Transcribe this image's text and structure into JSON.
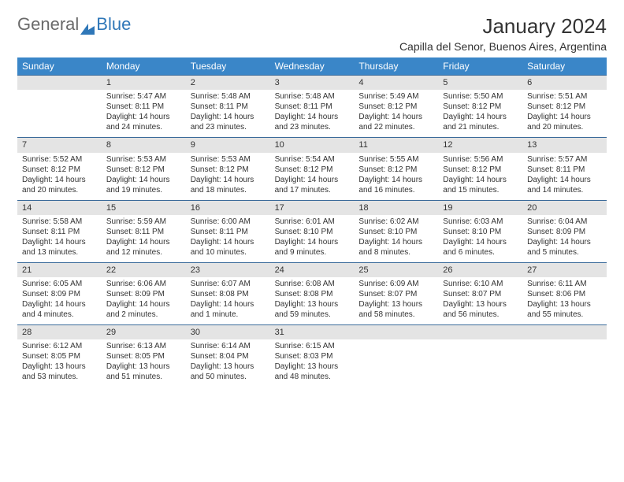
{
  "logo": {
    "part1": "General",
    "part2": "Blue"
  },
  "title": "January 2024",
  "subtitle": "Capilla del Senor, Buenos Aires, Argentina",
  "colors": {
    "header_bg": "#3a86c8",
    "header_text": "#ffffff",
    "daynum_bg": "#e4e4e4",
    "border": "#3a6a9a",
    "logo_grey": "#6a6a6a",
    "logo_blue": "#2f77b8",
    "text": "#333333"
  },
  "weekdays": [
    "Sunday",
    "Monday",
    "Tuesday",
    "Wednesday",
    "Thursday",
    "Friday",
    "Saturday"
  ],
  "weeks": [
    [
      {
        "n": "",
        "sr": "",
        "ss": "",
        "dl": "",
        "empty": true
      },
      {
        "n": "1",
        "sr": "Sunrise: 5:47 AM",
        "ss": "Sunset: 8:11 PM",
        "dl": "Daylight: 14 hours and 24 minutes."
      },
      {
        "n": "2",
        "sr": "Sunrise: 5:48 AM",
        "ss": "Sunset: 8:11 PM",
        "dl": "Daylight: 14 hours and 23 minutes."
      },
      {
        "n": "3",
        "sr": "Sunrise: 5:48 AM",
        "ss": "Sunset: 8:11 PM",
        "dl": "Daylight: 14 hours and 23 minutes."
      },
      {
        "n": "4",
        "sr": "Sunrise: 5:49 AM",
        "ss": "Sunset: 8:12 PM",
        "dl": "Daylight: 14 hours and 22 minutes."
      },
      {
        "n": "5",
        "sr": "Sunrise: 5:50 AM",
        "ss": "Sunset: 8:12 PM",
        "dl": "Daylight: 14 hours and 21 minutes."
      },
      {
        "n": "6",
        "sr": "Sunrise: 5:51 AM",
        "ss": "Sunset: 8:12 PM",
        "dl": "Daylight: 14 hours and 20 minutes."
      }
    ],
    [
      {
        "n": "7",
        "sr": "Sunrise: 5:52 AM",
        "ss": "Sunset: 8:12 PM",
        "dl": "Daylight: 14 hours and 20 minutes."
      },
      {
        "n": "8",
        "sr": "Sunrise: 5:53 AM",
        "ss": "Sunset: 8:12 PM",
        "dl": "Daylight: 14 hours and 19 minutes."
      },
      {
        "n": "9",
        "sr": "Sunrise: 5:53 AM",
        "ss": "Sunset: 8:12 PM",
        "dl": "Daylight: 14 hours and 18 minutes."
      },
      {
        "n": "10",
        "sr": "Sunrise: 5:54 AM",
        "ss": "Sunset: 8:12 PM",
        "dl": "Daylight: 14 hours and 17 minutes."
      },
      {
        "n": "11",
        "sr": "Sunrise: 5:55 AM",
        "ss": "Sunset: 8:12 PM",
        "dl": "Daylight: 14 hours and 16 minutes."
      },
      {
        "n": "12",
        "sr": "Sunrise: 5:56 AM",
        "ss": "Sunset: 8:12 PM",
        "dl": "Daylight: 14 hours and 15 minutes."
      },
      {
        "n": "13",
        "sr": "Sunrise: 5:57 AM",
        "ss": "Sunset: 8:11 PM",
        "dl": "Daylight: 14 hours and 14 minutes."
      }
    ],
    [
      {
        "n": "14",
        "sr": "Sunrise: 5:58 AM",
        "ss": "Sunset: 8:11 PM",
        "dl": "Daylight: 14 hours and 13 minutes."
      },
      {
        "n": "15",
        "sr": "Sunrise: 5:59 AM",
        "ss": "Sunset: 8:11 PM",
        "dl": "Daylight: 14 hours and 12 minutes."
      },
      {
        "n": "16",
        "sr": "Sunrise: 6:00 AM",
        "ss": "Sunset: 8:11 PM",
        "dl": "Daylight: 14 hours and 10 minutes."
      },
      {
        "n": "17",
        "sr": "Sunrise: 6:01 AM",
        "ss": "Sunset: 8:10 PM",
        "dl": "Daylight: 14 hours and 9 minutes."
      },
      {
        "n": "18",
        "sr": "Sunrise: 6:02 AM",
        "ss": "Sunset: 8:10 PM",
        "dl": "Daylight: 14 hours and 8 minutes."
      },
      {
        "n": "19",
        "sr": "Sunrise: 6:03 AM",
        "ss": "Sunset: 8:10 PM",
        "dl": "Daylight: 14 hours and 6 minutes."
      },
      {
        "n": "20",
        "sr": "Sunrise: 6:04 AM",
        "ss": "Sunset: 8:09 PM",
        "dl": "Daylight: 14 hours and 5 minutes."
      }
    ],
    [
      {
        "n": "21",
        "sr": "Sunrise: 6:05 AM",
        "ss": "Sunset: 8:09 PM",
        "dl": "Daylight: 14 hours and 4 minutes."
      },
      {
        "n": "22",
        "sr": "Sunrise: 6:06 AM",
        "ss": "Sunset: 8:09 PM",
        "dl": "Daylight: 14 hours and 2 minutes."
      },
      {
        "n": "23",
        "sr": "Sunrise: 6:07 AM",
        "ss": "Sunset: 8:08 PM",
        "dl": "Daylight: 14 hours and 1 minute."
      },
      {
        "n": "24",
        "sr": "Sunrise: 6:08 AM",
        "ss": "Sunset: 8:08 PM",
        "dl": "Daylight: 13 hours and 59 minutes."
      },
      {
        "n": "25",
        "sr": "Sunrise: 6:09 AM",
        "ss": "Sunset: 8:07 PM",
        "dl": "Daylight: 13 hours and 58 minutes."
      },
      {
        "n": "26",
        "sr": "Sunrise: 6:10 AM",
        "ss": "Sunset: 8:07 PM",
        "dl": "Daylight: 13 hours and 56 minutes."
      },
      {
        "n": "27",
        "sr": "Sunrise: 6:11 AM",
        "ss": "Sunset: 8:06 PM",
        "dl": "Daylight: 13 hours and 55 minutes."
      }
    ],
    [
      {
        "n": "28",
        "sr": "Sunrise: 6:12 AM",
        "ss": "Sunset: 8:05 PM",
        "dl": "Daylight: 13 hours and 53 minutes."
      },
      {
        "n": "29",
        "sr": "Sunrise: 6:13 AM",
        "ss": "Sunset: 8:05 PM",
        "dl": "Daylight: 13 hours and 51 minutes."
      },
      {
        "n": "30",
        "sr": "Sunrise: 6:14 AM",
        "ss": "Sunset: 8:04 PM",
        "dl": "Daylight: 13 hours and 50 minutes."
      },
      {
        "n": "31",
        "sr": "Sunrise: 6:15 AM",
        "ss": "Sunset: 8:03 PM",
        "dl": "Daylight: 13 hours and 48 minutes."
      },
      {
        "n": "",
        "sr": "",
        "ss": "",
        "dl": "",
        "empty": true
      },
      {
        "n": "",
        "sr": "",
        "ss": "",
        "dl": "",
        "empty": true
      },
      {
        "n": "",
        "sr": "",
        "ss": "",
        "dl": "",
        "empty": true
      }
    ]
  ]
}
